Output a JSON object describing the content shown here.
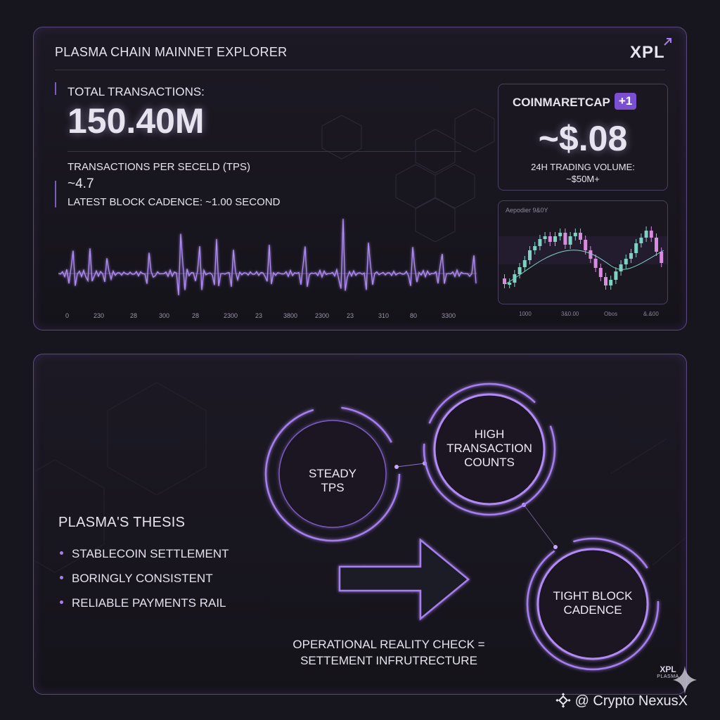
{
  "explorer": {
    "title": "PLASMA CHAIN MAINNET EXPLORER",
    "logo_text": "XPL",
    "total_tx_label": "TOTAL TRANSACTIONS:",
    "total_tx_value": "150.40M",
    "tps_label": "TRANSACTIONS PER SECELD (TPS)",
    "tps_value": "~4.7",
    "block_cadence_label": "LATEST BLOCK CADENCE: ~1.00 SECOND",
    "wave_ticks": [
      "0",
      "230",
      "28",
      "300",
      "28",
      "2300",
      "23",
      "3800",
      "2300",
      "23",
      "310",
      "80",
      "3300"
    ]
  },
  "market": {
    "source": "COINMARETCAP",
    "badge": "+1",
    "price": "~$.08",
    "volume_label": "24H TRADING VOLUME:",
    "volume_value": "~$50M+",
    "mini_chart_label": "Aepodier 9&0Y",
    "mini_ticks": [
      "1000",
      "3&0.00",
      "Obos",
      "&.&00"
    ]
  },
  "thesis": {
    "title": "PLASMA'S THESIS",
    "bullets": [
      "STABLECOIN SETTLEMENT",
      "BORINGLY CONSISTENT",
      "RELIABLE PAYMENTS RAIL"
    ],
    "circles": {
      "steady_line1": "STEADY",
      "steady_line2": "TPS",
      "high_line1": "HIGH",
      "high_line2": "TRANSACTION",
      "high_line3": "COUNTS",
      "tight_line1": "TIGHT BLOCK",
      "tight_line2": "CADENCE"
    },
    "reality_line1": "OPERATIONAL REALITY CHECK =",
    "reality_line2": "SETTEMENT INFRUTRECTURE"
  },
  "corner_logo": {
    "mark": "XPL",
    "name": "PLASMA"
  },
  "watermark": "@ Crypto NexusX",
  "colors": {
    "accent": "#a77ef0",
    "background": "#17151d",
    "candle_up": "#7fd1c4",
    "candle_down": "#d98be0"
  }
}
